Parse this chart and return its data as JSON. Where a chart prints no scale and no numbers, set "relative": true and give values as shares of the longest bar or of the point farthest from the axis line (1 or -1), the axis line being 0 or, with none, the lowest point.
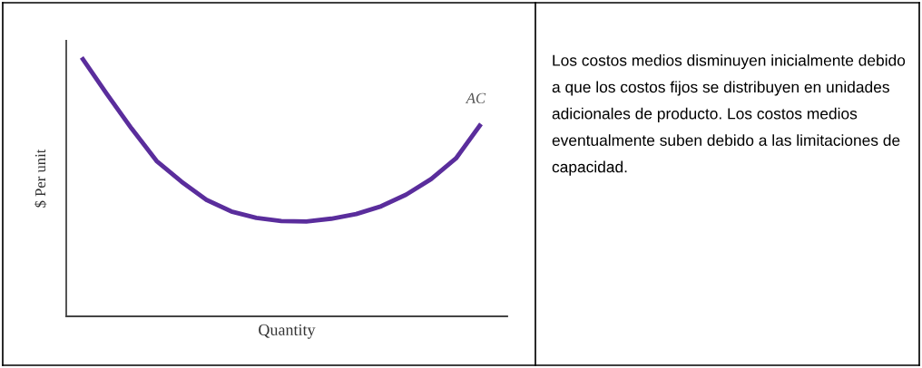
{
  "chart_data": [
    {
      "type": "line",
      "relative": true,
      "xlabel": "Quantity",
      "ylabel": "$ Per unit",
      "categories": [
        null,
        null,
        null,
        null,
        null,
        null,
        null,
        null,
        null,
        null,
        null,
        null,
        null,
        null,
        null,
        null,
        null
      ],
      "series": [
        {
          "name": "AC",
          "color": "#5a2d9c",
          "values": [
            1.0,
            0.86,
            0.725,
            0.6,
            0.52,
            0.45,
            0.405,
            0.38,
            0.368,
            0.366,
            0.377,
            0.395,
            0.425,
            0.47,
            0.53,
            0.61,
            0.743
          ]
        }
      ],
      "grid": false,
      "legend": false,
      "marker": "none",
      "line_style": "solid",
      "tick_labels": false
    },
    {
      "type": "other",
      "annotations": [
        "Los costos medios disminuyen inicialmente debido a que los costos fijos se distribuyen en unidades adicionales de producto. Los costos medios eventualmente suben debido a las limitaciones de capacidad."
      ]
    }
  ]
}
